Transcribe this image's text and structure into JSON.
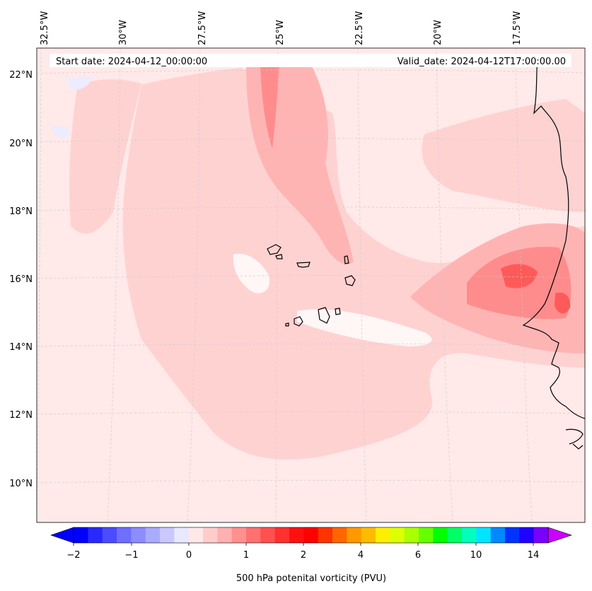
{
  "header": {
    "start_date": "Start date: 2024-04-12_00:00:00",
    "valid_date": "Valid_date: 2024-04-12T17:00:00.00"
  },
  "axes": {
    "lon_labels": [
      "32.5°W",
      "30°W",
      "27.5°W",
      "25°W",
      "22.5°W",
      "20°W",
      "17.5°W"
    ],
    "lat_labels": [
      "22°N",
      "20°N",
      "18°N",
      "16°N",
      "14°N",
      "12°N",
      "10°N"
    ]
  },
  "colorbar": {
    "label": "500 hPa potenital vorticity (PVU)",
    "tick_labels": [
      "−2",
      "−1",
      "0",
      "1",
      "2",
      "4",
      "6",
      "10",
      "14"
    ],
    "colors": [
      "#0000ff",
      "#2828ff",
      "#4b4bff",
      "#6e6eff",
      "#8c8cff",
      "#aaaaff",
      "#c8c8ff",
      "#e8e8ff",
      "#ffe8e8",
      "#ffcccc",
      "#ffb0b0",
      "#ff9090",
      "#ff7070",
      "#ff5050",
      "#ff3030",
      "#ff1010",
      "#ff0000",
      "#ff3300",
      "#ff6600",
      "#ff9900",
      "#ffbb00",
      "#ffee00",
      "#ddff00",
      "#aaff00",
      "#66ff00",
      "#00ff00",
      "#00ff66",
      "#00ffbb",
      "#00e5ff",
      "#0088ff",
      "#0033ff",
      "#2200ff",
      "#7700ff"
    ],
    "under_color": "#0000ff",
    "over_color": "#cc00ff"
  },
  "field_colors": {
    "background": "#ffe9e9",
    "light": "#ffd2d2",
    "medium": "#ffb4b4",
    "strong": "#ff8c8c",
    "max": "#ff5a5a",
    "negative": "#ececff",
    "zero": "#fff6f6"
  }
}
